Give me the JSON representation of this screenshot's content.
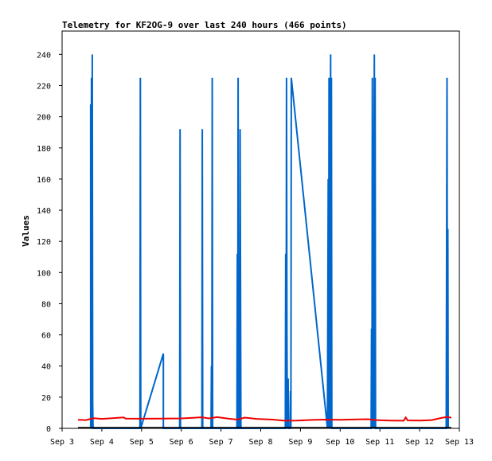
{
  "chart_data": {
    "type": "line",
    "title": "Telemetry for KF2OG-9 over last 240 hours (466 points)",
    "ylabel": "Values",
    "xlabel": "",
    "ylim": [
      0,
      255
    ],
    "yticks": [
      0,
      20,
      40,
      60,
      80,
      100,
      120,
      140,
      160,
      180,
      200,
      220,
      240
    ],
    "xlim": [
      3.0,
      13.0
    ],
    "xticks": [
      {
        "v": 3,
        "label": "Sep 3"
      },
      {
        "v": 4,
        "label": "Sep 4"
      },
      {
        "v": 5,
        "label": "Sep 5"
      },
      {
        "v": 6,
        "label": "Sep 6"
      },
      {
        "v": 7,
        "label": "Sep 7"
      },
      {
        "v": 8,
        "label": "Sep 8"
      },
      {
        "v": 9,
        "label": "Sep 9"
      },
      {
        "v": 10,
        "label": "Sep 10"
      },
      {
        "v": 11,
        "label": "Sep 11"
      },
      {
        "v": 12,
        "label": "Sep 12"
      },
      {
        "v": 13,
        "label": "Sep 13"
      }
    ],
    "x_units": "day of September",
    "grid": false,
    "series": [
      {
        "color": "#0066cc",
        "points": [
          [
            3.72,
            0
          ],
          [
            3.72,
            208
          ],
          [
            3.73,
            0
          ],
          [
            3.74,
            225
          ],
          [
            3.75,
            0
          ],
          [
            3.76,
            240
          ],
          [
            3.77,
            16
          ],
          [
            3.78,
            0
          ],
          [
            4.96,
            0
          ],
          [
            4.97,
            225
          ],
          [
            4.98,
            0
          ],
          [
            5.55,
            48
          ],
          [
            5.55,
            0
          ],
          [
            5.96,
            0
          ],
          [
            5.97,
            192
          ],
          [
            5.98,
            0
          ],
          [
            6.52,
            0
          ],
          [
            6.53,
            192
          ],
          [
            6.54,
            0
          ],
          [
            6.75,
            0
          ],
          [
            6.76,
            40
          ],
          [
            6.77,
            0
          ],
          [
            6.78,
            225
          ],
          [
            6.79,
            0
          ],
          [
            7.4,
            0
          ],
          [
            7.41,
            112
          ],
          [
            7.42,
            0
          ],
          [
            7.43,
            225
          ],
          [
            7.44,
            0
          ],
          [
            7.47,
            0
          ],
          [
            7.48,
            192
          ],
          [
            7.49,
            96
          ],
          [
            7.5,
            0
          ],
          [
            8.62,
            0
          ],
          [
            8.63,
            112
          ],
          [
            8.64,
            0
          ],
          [
            8.65,
            225
          ],
          [
            8.66,
            64
          ],
          [
            8.67,
            0
          ],
          [
            8.69,
            32
          ],
          [
            8.7,
            0
          ],
          [
            8.74,
            0
          ],
          [
            8.75,
            24
          ],
          [
            8.76,
            0
          ],
          [
            8.77,
            225
          ],
          [
            9.68,
            0
          ],
          [
            9.7,
            160
          ],
          [
            9.71,
            0
          ],
          [
            9.72,
            225
          ],
          [
            9.73,
            0
          ],
          [
            9.76,
            240
          ],
          [
            9.77,
            0
          ],
          [
            9.78,
            225
          ],
          [
            9.79,
            0
          ],
          [
            10.78,
            0
          ],
          [
            10.79,
            64
          ],
          [
            10.8,
            0
          ],
          [
            10.81,
            225
          ],
          [
            10.82,
            112
          ],
          [
            10.83,
            0
          ],
          [
            10.86,
            240
          ],
          [
            10.87,
            0
          ],
          [
            10.88,
            225
          ],
          [
            10.89,
            0
          ],
          [
            12.67,
            0
          ],
          [
            12.68,
            112
          ],
          [
            12.69,
            225
          ],
          [
            12.7,
            0
          ],
          [
            12.71,
            128
          ],
          [
            12.72,
            0
          ]
        ]
      },
      {
        "color": "#ee0000",
        "points": [
          [
            3.4,
            5.5
          ],
          [
            3.6,
            5.3
          ],
          [
            3.8,
            6.5
          ],
          [
            4.0,
            6.1
          ],
          [
            4.3,
            6.6
          ],
          [
            4.55,
            7.0
          ],
          [
            4.6,
            6.3
          ],
          [
            5.0,
            6.2
          ],
          [
            5.5,
            6.3
          ],
          [
            6.0,
            6.4
          ],
          [
            6.3,
            6.8
          ],
          [
            6.5,
            7.1
          ],
          [
            6.7,
            6.4
          ],
          [
            6.9,
            7.2
          ],
          [
            7.2,
            6.2
          ],
          [
            7.4,
            5.6
          ],
          [
            7.6,
            6.9
          ],
          [
            7.9,
            6.1
          ],
          [
            8.3,
            5.6
          ],
          [
            8.6,
            4.9
          ],
          [
            8.9,
            5.0
          ],
          [
            9.3,
            5.4
          ],
          [
            9.6,
            5.6
          ],
          [
            10.0,
            5.5
          ],
          [
            10.4,
            5.7
          ],
          [
            10.7,
            5.9
          ],
          [
            10.9,
            5.3
          ],
          [
            11.3,
            5.0
          ],
          [
            11.6,
            4.9
          ],
          [
            11.65,
            7.0
          ],
          [
            11.7,
            5.1
          ],
          [
            12.0,
            5.0
          ],
          [
            12.3,
            5.3
          ],
          [
            12.55,
            6.7
          ],
          [
            12.7,
            7.3
          ],
          [
            12.8,
            6.8
          ]
        ]
      },
      {
        "color": "#000000",
        "points": [
          [
            3.4,
            0.4
          ],
          [
            12.8,
            0.4
          ]
        ]
      }
    ]
  }
}
